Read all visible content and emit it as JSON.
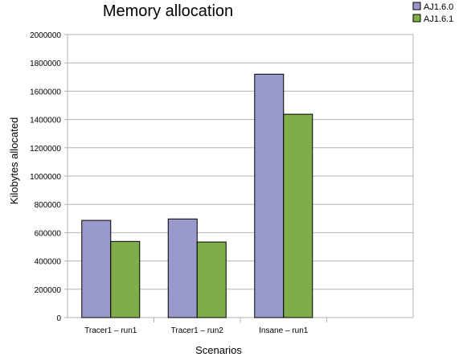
{
  "chart_data": {
    "type": "bar",
    "title": "Memory allocation",
    "xlabel": "Scenarios",
    "ylabel": "Kilobytes allocated",
    "categories": [
      "Tracer1 – run1",
      "Tracer1 – run2",
      "Insane – run1",
      ""
    ],
    "series": [
      {
        "name": "AJ1.6.0",
        "color": "#9999cc",
        "values": [
          687000,
          697000,
          1720000,
          null
        ]
      },
      {
        "name": "AJ1.6.1",
        "color": "#80ad4a",
        "values": [
          538000,
          534000,
          1437000,
          null
        ]
      }
    ],
    "ylim": [
      0,
      2000000
    ],
    "yticks": [
      "0",
      "200000",
      "400000",
      "600000",
      "800000",
      "1000000",
      "1200000",
      "1400000",
      "1600000",
      "1800000",
      "2000000"
    ],
    "ytick_values": [
      0,
      200000,
      400000,
      600000,
      800000,
      1000000,
      1200000,
      1400000,
      1600000,
      1800000,
      2000000
    ],
    "grid": true,
    "legend_position": "top-right"
  }
}
